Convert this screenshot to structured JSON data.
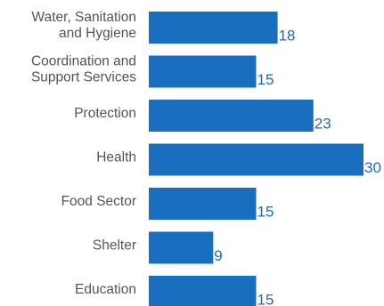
{
  "chart_data": {
    "type": "bar",
    "orientation": "horizontal",
    "categories": [
      [
        "Water, Sanitation",
        "and Hygiene"
      ],
      [
        "Coordination and",
        "Support Services"
      ],
      [
        "Protection"
      ],
      [
        "Health"
      ],
      [
        "Food Sector"
      ],
      [
        "Shelter"
      ],
      [
        "Education"
      ]
    ],
    "values": [
      18,
      15,
      23,
      30,
      15,
      9,
      15
    ],
    "title": "",
    "xlabel": "",
    "ylabel": "",
    "xlim": [
      0,
      30
    ],
    "grid": false,
    "legend": "none",
    "bar_color": "#1a6ebf",
    "value_label_color": "#1a6ebf",
    "category_label_color": "#555555"
  }
}
